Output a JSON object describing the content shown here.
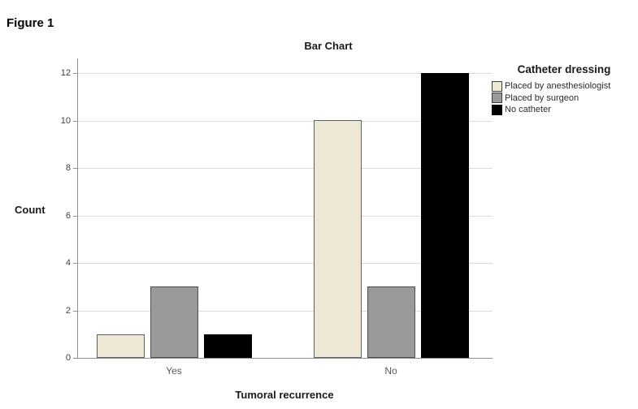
{
  "figure_label": "Figure 1",
  "chart_data": {
    "type": "bar",
    "title": "Bar Chart",
    "xlabel": "Tumoral recurrence",
    "ylabel": "Count",
    "legend_title": "Catheter dressing",
    "legend_position": "right",
    "categories": [
      "Yes",
      "No"
    ],
    "series": [
      {
        "name": "Placed by anesthesiologist",
        "values": [
          1,
          10
        ],
        "fill": "#EDE8D5",
        "border": "#62625A"
      },
      {
        "name": "Placed by surgeon",
        "values": [
          3,
          3
        ],
        "fill": "#9B9999",
        "border": "#4D4D4D"
      },
      {
        "name": "No catheter",
        "values": [
          1,
          12
        ],
        "fill": "#000000",
        "border": "#000000"
      }
    ],
    "ylim": [
      0,
      12
    ],
    "yticks": [
      0,
      2,
      4,
      6,
      8,
      10,
      12
    ],
    "grid": true
  },
  "style": {
    "gridline_color": "#DBDBDB",
    "axis_color": "#8F8F8F",
    "tick_label_color": "#404040",
    "category_label_color": "#595959",
    "background": "#FFFFFF"
  }
}
